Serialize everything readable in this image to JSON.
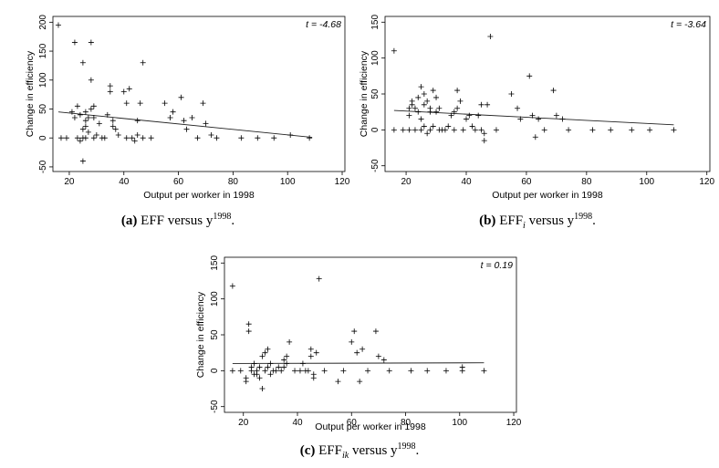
{
  "chart_data": [
    {
      "type": "scatter",
      "panel": "a",
      "caption_label": "(a)",
      "caption_main": "EFF versus y",
      "caption_sub": "",
      "caption_sup": "1998",
      "caption_tail": ".",
      "xlabel": "Output per worker in 1998",
      "ylabel": "Change in efficiency",
      "stat_label": "t = -4.68",
      "xlim": [
        14,
        121
      ],
      "ylim": [
        -58,
        210
      ],
      "xticks": [
        20,
        40,
        60,
        80,
        100,
        120
      ],
      "yticks": [
        -50,
        0,
        50,
        100,
        150,
        200
      ],
      "fit_line": {
        "x": [
          16,
          109
        ],
        "y": [
          45,
          1
        ]
      },
      "points": [
        [
          16,
          195
        ],
        [
          17,
          0
        ],
        [
          19,
          0
        ],
        [
          21,
          45
        ],
        [
          22,
          165
        ],
        [
          22,
          35
        ],
        [
          23,
          55
        ],
        [
          23,
          0
        ],
        [
          24,
          40
        ],
        [
          24,
          -5
        ],
        [
          25,
          130
        ],
        [
          25,
          0
        ],
        [
          25,
          15
        ],
        [
          25,
          -40
        ],
        [
          26,
          45
        ],
        [
          26,
          30
        ],
        [
          26,
          20
        ],
        [
          26,
          0
        ],
        [
          27,
          35
        ],
        [
          27,
          10
        ],
        [
          28,
          165
        ],
        [
          28,
          100
        ],
        [
          28,
          50
        ],
        [
          29,
          55
        ],
        [
          29,
          35
        ],
        [
          29,
          0
        ],
        [
          30,
          5
        ],
        [
          31,
          25
        ],
        [
          32,
          0
        ],
        [
          33,
          0
        ],
        [
          34,
          40
        ],
        [
          35,
          90
        ],
        [
          35,
          80
        ],
        [
          36,
          30
        ],
        [
          36,
          20
        ],
        [
          37,
          15
        ],
        [
          38,
          5
        ],
        [
          40,
          80
        ],
        [
          41,
          0
        ],
        [
          41,
          60
        ],
        [
          42,
          85
        ],
        [
          43,
          0
        ],
        [
          44,
          -5
        ],
        [
          45,
          30
        ],
        [
          45,
          5
        ],
        [
          46,
          60
        ],
        [
          47,
          0
        ],
        [
          47,
          130
        ],
        [
          50,
          0
        ],
        [
          55,
          60
        ],
        [
          57,
          35
        ],
        [
          58,
          45
        ],
        [
          61,
          70
        ],
        [
          62,
          30
        ],
        [
          63,
          15
        ],
        [
          65,
          35
        ],
        [
          67,
          0
        ],
        [
          69,
          60
        ],
        [
          70,
          25
        ],
        [
          72,
          5
        ],
        [
          74,
          0
        ],
        [
          83,
          0
        ],
        [
          89,
          0
        ],
        [
          95,
          0
        ],
        [
          101,
          5
        ],
        [
          108,
          0
        ]
      ]
    },
    {
      "type": "scatter",
      "panel": "b",
      "caption_label": "(b)",
      "caption_main": "EFF",
      "caption_sub": "i",
      "caption_sup": "1998",
      "caption_tail": ".",
      "versus": "versus y",
      "xlabel": "Output per worker in 1998",
      "ylabel": "Change in efficiency",
      "stat_label": "t = -3.64",
      "xlim": [
        13,
        121
      ],
      "ylim": [
        -58,
        158
      ],
      "xticks": [
        20,
        40,
        60,
        80,
        100,
        120
      ],
      "yticks": [
        -50,
        0,
        50,
        100,
        150
      ],
      "fit_line": {
        "x": [
          16,
          109
        ],
        "y": [
          27,
          7
        ]
      },
      "points": [
        [
          16,
          110
        ],
        [
          16,
          0
        ],
        [
          19,
          0
        ],
        [
          21,
          0
        ],
        [
          21,
          20
        ],
        [
          21,
          30
        ],
        [
          22,
          40
        ],
        [
          22,
          35
        ],
        [
          23,
          0
        ],
        [
          23,
          30
        ],
        [
          24,
          45
        ],
        [
          24,
          25
        ],
        [
          25,
          0
        ],
        [
          25,
          15
        ],
        [
          25,
          60
        ],
        [
          26,
          5
        ],
        [
          26,
          35
        ],
        [
          26,
          50
        ],
        [
          27,
          -5
        ],
        [
          27,
          40
        ],
        [
          28,
          0
        ],
        [
          28,
          25
        ],
        [
          28,
          30
        ],
        [
          29,
          5
        ],
        [
          29,
          55
        ],
        [
          30,
          45
        ],
        [
          30,
          25
        ],
        [
          31,
          0
        ],
        [
          31,
          30
        ],
        [
          32,
          0
        ],
        [
          33,
          0
        ],
        [
          34,
          5
        ],
        [
          35,
          20
        ],
        [
          36,
          0
        ],
        [
          36,
          25
        ],
        [
          37,
          55
        ],
        [
          37,
          30
        ],
        [
          38,
          40
        ],
        [
          39,
          0
        ],
        [
          40,
          15
        ],
        [
          41,
          20
        ],
        [
          42,
          5
        ],
        [
          43,
          0
        ],
        [
          44,
          20
        ],
        [
          45,
          0
        ],
        [
          45,
          35
        ],
        [
          46,
          -5
        ],
        [
          46,
          -15
        ],
        [
          47,
          35
        ],
        [
          48,
          130
        ],
        [
          50,
          0
        ],
        [
          55,
          50
        ],
        [
          57,
          30
        ],
        [
          58,
          15
        ],
        [
          61,
          75
        ],
        [
          62,
          20
        ],
        [
          63,
          -10
        ],
        [
          64,
          15
        ],
        [
          66,
          0
        ],
        [
          69,
          55
        ],
        [
          70,
          20
        ],
        [
          72,
          15
        ],
        [
          74,
          0
        ],
        [
          82,
          0
        ],
        [
          88,
          0
        ],
        [
          95,
          0
        ],
        [
          101,
          0
        ],
        [
          109,
          0
        ]
      ]
    },
    {
      "type": "scatter",
      "panel": "c",
      "caption_label": "(c)",
      "caption_main": "EFF",
      "caption_sub": "ik",
      "caption_sup": "1998",
      "caption_tail": ".",
      "versus": "versus y",
      "xlabel": "Output per worker in 1998",
      "ylabel": "Change in efficiency",
      "stat_label": "t = 0.19",
      "xlim": [
        13,
        121
      ],
      "ylim": [
        -58,
        158
      ],
      "xticks": [
        20,
        40,
        60,
        80,
        100,
        120
      ],
      "yticks": [
        -50,
        0,
        50,
        100,
        150
      ],
      "fit_line": {
        "x": [
          16,
          109
        ],
        "y": [
          10,
          11
        ]
      },
      "points": [
        [
          16,
          118
        ],
        [
          16,
          0
        ],
        [
          19,
          0
        ],
        [
          21,
          -10
        ],
        [
          21,
          -15
        ],
        [
          22,
          65
        ],
        [
          22,
          55
        ],
        [
          23,
          5
        ],
        [
          23,
          0
        ],
        [
          24,
          -5
        ],
        [
          24,
          10
        ],
        [
          25,
          0
        ],
        [
          25,
          -5
        ],
        [
          26,
          5
        ],
        [
          26,
          -10
        ],
        [
          27,
          -25
        ],
        [
          27,
          20
        ],
        [
          28,
          0
        ],
        [
          28,
          25
        ],
        [
          29,
          30
        ],
        [
          29,
          5
        ],
        [
          30,
          -5
        ],
        [
          30,
          10
        ],
        [
          31,
          0
        ],
        [
          32,
          0
        ],
        [
          33,
          5
        ],
        [
          34,
          0
        ],
        [
          35,
          5
        ],
        [
          35,
          15
        ],
        [
          36,
          10
        ],
        [
          36,
          20
        ],
        [
          37,
          40
        ],
        [
          39,
          0
        ],
        [
          41,
          0
        ],
        [
          42,
          10
        ],
        [
          43,
          0
        ],
        [
          44,
          0
        ],
        [
          45,
          20
        ],
        [
          45,
          30
        ],
        [
          46,
          -5
        ],
        [
          46,
          -10
        ],
        [
          47,
          25
        ],
        [
          48,
          128
        ],
        [
          50,
          0
        ],
        [
          55,
          -15
        ],
        [
          57,
          0
        ],
        [
          60,
          40
        ],
        [
          61,
          55
        ],
        [
          62,
          25
        ],
        [
          63,
          -15
        ],
        [
          64,
          30
        ],
        [
          66,
          0
        ],
        [
          69,
          55
        ],
        [
          70,
          20
        ],
        [
          72,
          15
        ],
        [
          74,
          0
        ],
        [
          82,
          0
        ],
        [
          88,
          0
        ],
        [
          95,
          0
        ],
        [
          101,
          0
        ],
        [
          101,
          5
        ],
        [
          109,
          0
        ]
      ]
    }
  ]
}
